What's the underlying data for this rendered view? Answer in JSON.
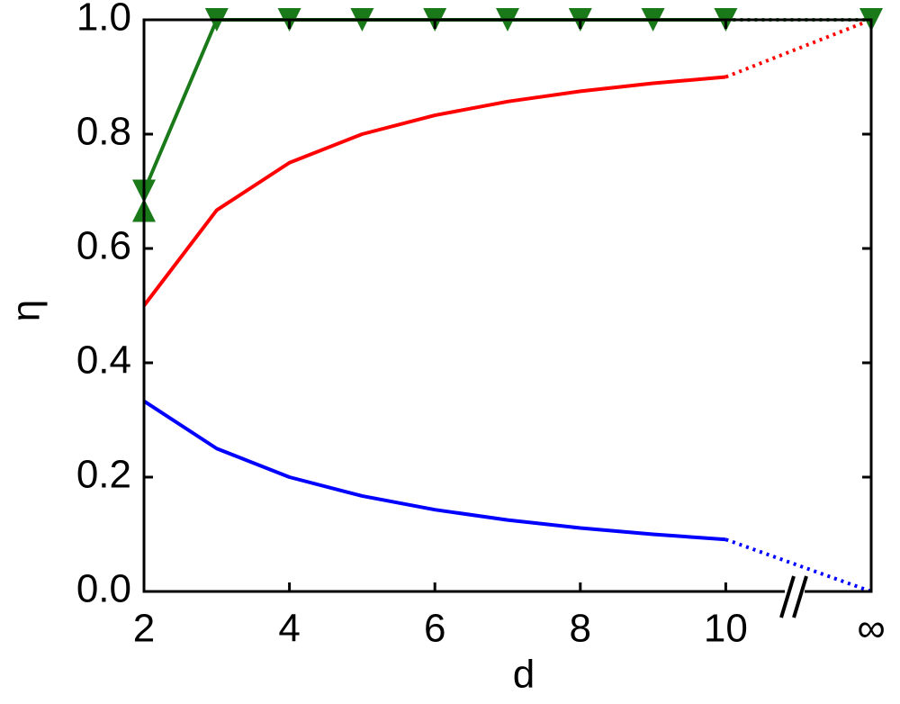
{
  "chart_data": {
    "type": "line",
    "xlabel": "d",
    "ylabel": "η",
    "xlim": [
      2,
      12
    ],
    "ylim": [
      0,
      1
    ],
    "xticks": [
      2,
      4,
      6,
      8,
      10,
      {
        "value": 12,
        "label": "∞"
      }
    ],
    "yticks": [
      {
        "value": 0,
        "label": "0.0"
      },
      {
        "value": 0.2,
        "label": "0.2"
      },
      {
        "value": 0.4,
        "label": "0.4"
      },
      {
        "value": 0.6,
        "label": "0.6"
      },
      {
        "value": 0.8,
        "label": "0.8"
      },
      {
        "value": 1,
        "label": "1.0"
      }
    ],
    "series": [
      {
        "color": "#ff0000",
        "linestyle": "solid",
        "marker": "none",
        "x": [
          2,
          3,
          4,
          5,
          6,
          7,
          8,
          9,
          10
        ],
        "values": [
          0.5,
          0.667,
          0.75,
          0.8,
          0.833,
          0.857,
          0.875,
          0.889,
          0.9
        ]
      },
      {
        "color": "#ff0000",
        "linestyle": "dotted",
        "marker": "none",
        "x": [
          10,
          12
        ],
        "values": [
          0.9,
          1
        ]
      },
      {
        "color": "#0000ff",
        "linestyle": "solid",
        "marker": "none",
        "x": [
          2,
          3,
          4,
          5,
          6,
          7,
          8,
          9,
          10
        ],
        "values": [
          0.333,
          0.25,
          0.2,
          0.167,
          0.143,
          0.125,
          0.111,
          0.1,
          0.091
        ]
      },
      {
        "color": "#0000ff",
        "linestyle": "dotted",
        "marker": "none",
        "x": [
          10,
          12
        ],
        "values": [
          0.091,
          0
        ]
      },
      {
        "color": "#1a7a1a",
        "linestyle": "solid",
        "marker": "down",
        "x": [
          2,
          3,
          4,
          5,
          6,
          7,
          8,
          9,
          10
        ],
        "values": [
          0.7,
          1,
          1,
          1,
          1,
          1,
          1,
          1,
          1
        ]
      },
      {
        "color": "#1a7a1a",
        "linestyle": "dotted",
        "marker": "none",
        "x": [
          10,
          12
        ],
        "values": [
          1,
          1
        ]
      },
      {
        "color": "#1a7a1a",
        "linestyle": "none",
        "marker": "down",
        "x": [
          12
        ],
        "values": [
          1
        ]
      },
      {
        "color": "#1a7a1a",
        "linestyle": "none",
        "marker": "up",
        "x": [
          2
        ],
        "values": [
          0.667
        ]
      }
    ]
  }
}
